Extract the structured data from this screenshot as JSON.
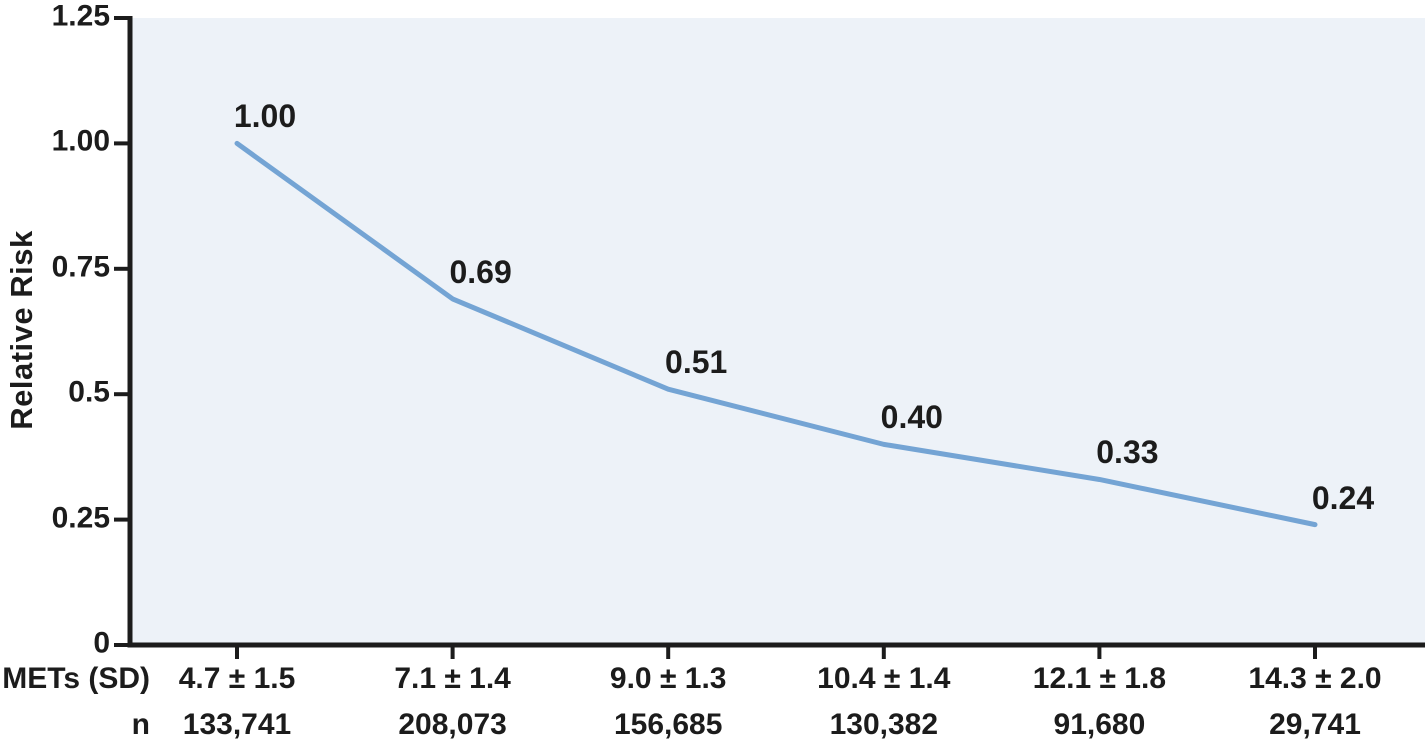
{
  "chart_data": {
    "type": "line",
    "title": "",
    "xlabel": "",
    "ylabel": "Relative Risk",
    "ylim": [
      0,
      1.25
    ],
    "grid": false,
    "legend": "none",
    "plot_bg": "#edf2f8",
    "line_color": "#74a4d4",
    "axis_color": "#1c1c1c",
    "yticks": [
      {
        "value": 0,
        "label": "0"
      },
      {
        "value": 0.25,
        "label": "0.25"
      },
      {
        "value": 0.5,
        "label": "0.5"
      },
      {
        "value": 0.75,
        "label": "0.75"
      },
      {
        "value": 1.0,
        "label": "1.00"
      },
      {
        "value": 1.25,
        "label": "1.25"
      }
    ],
    "categories": [
      "4.7 ± 1.5",
      "7.1 ± 1.4",
      "9.0 ± 1.3",
      "10.4 ± 1.4",
      "12.1 ± 1.8",
      "14.3 ± 2.0"
    ],
    "series": [
      {
        "name": "Relative Risk",
        "values": [
          1.0,
          0.69,
          0.51,
          0.4,
          0.33,
          0.24
        ],
        "labels": [
          "1.00",
          "0.69",
          "0.51",
          "0.40",
          "0.33",
          "0.24"
        ]
      }
    ],
    "rows": [
      {
        "header": "METs (SD)",
        "values": [
          "4.7 ± 1.5",
          "7.1 ± 1.4",
          "9.0 ± 1.3",
          "10.4 ± 1.4",
          "12.1 ± 1.8",
          "14.3 ± 2.0"
        ]
      },
      {
        "header": "n",
        "values": [
          "133,741",
          "208,073",
          "156,685",
          "130,382",
          "91,680",
          "29,741"
        ]
      }
    ]
  }
}
